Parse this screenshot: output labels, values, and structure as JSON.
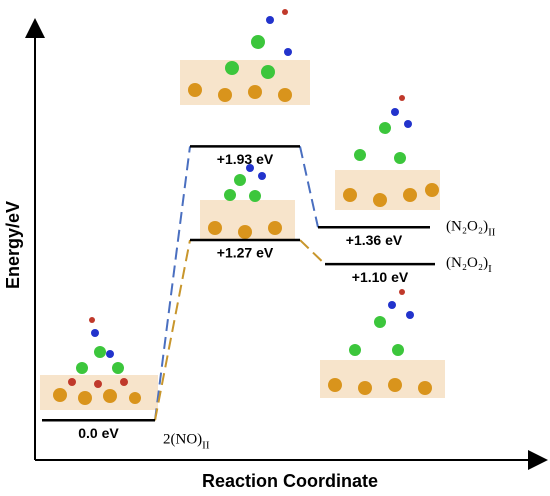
{
  "chart_data": {
    "type": "energy-profile",
    "x_label": "Reaction Coordinate",
    "y_label": "Energy/eV",
    "ylim": [
      -0.28,
      2.75
    ],
    "values": [
      0,
      1.93,
      1.27,
      1.36,
      1.1
    ],
    "value_labels": [
      "0.0 eV",
      "+1.93 eV",
      "+1.27 eV",
      "+1.36 eV",
      "+1.10 eV"
    ],
    "species": [
      {
        "name": "2(NO)",
        "sub": "II"
      },
      null,
      null,
      {
        "name": "(N₂O₂)",
        "sub": "II"
      },
      {
        "name": "(N₂O₂)",
        "sub": "I"
      }
    ],
    "colors": [
      "#4a6fc0",
      "#c8962c"
    ]
  }
}
